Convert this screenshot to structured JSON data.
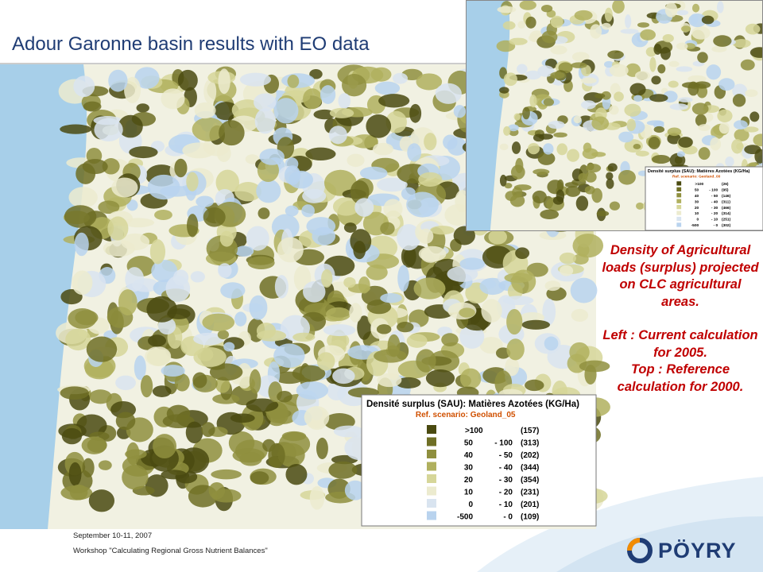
{
  "header": {
    "title": "Adour Garonne basin results with EO data"
  },
  "main_map": {
    "legend": {
      "title": "Densité surplus (SAU): Matières Azotées (KG/Ha)",
      "scenario": "Ref. scenario: Geoland_05",
      "rows": [
        {
          "from": ">100",
          "count": "(157)"
        },
        {
          "from": "50",
          "to": "- 100",
          "count": "(313)"
        },
        {
          "from": "40",
          "to": "- 50",
          "count": "(202)"
        },
        {
          "from": "30",
          "to": "- 40",
          "count": "(344)"
        },
        {
          "from": "20",
          "to": "- 30",
          "count": "(354)"
        },
        {
          "from": "10",
          "to": "- 20",
          "count": "(231)"
        },
        {
          "from": "0",
          "to": "- 10",
          "count": "(201)"
        },
        {
          "from": "-500",
          "to": "- 0",
          "count": "(109)"
        }
      ]
    }
  },
  "inset_map": {
    "legend": {
      "title": "Densité surplus (SAU): Matières Azotées (KG/Ha)",
      "scenario": "Ref. scenario: Geoland_00",
      "rows": [
        {
          "from": ">100",
          "count": "(26)"
        },
        {
          "from": "50",
          "to": "- 100",
          "count": "(95)"
        },
        {
          "from": "40",
          "to": "- 50",
          "count": "(146)"
        },
        {
          "from": "30",
          "to": "- 40",
          "count": "(311)"
        },
        {
          "from": "20",
          "to": "- 30",
          "count": "(466)"
        },
        {
          "from": "10",
          "to": "- 20",
          "count": "(314)"
        },
        {
          "from": "0",
          "to": "- 10",
          "count": "(251)"
        },
        {
          "from": "-500",
          "to": "- 0",
          "count": "(302)"
        }
      ]
    }
  },
  "description": {
    "lines": [
      "Density of Agricultural loads (surplus) projected on CLC agricultural areas.",
      "Left : Current calculation for 2005.",
      "Top : Reference calculation for 2000."
    ]
  },
  "footer": {
    "date": "September 10-11, 2007",
    "event": "Workshop \"Calculating Regional Gross Nutrient Balances\""
  },
  "logo": {
    "text": "PÖYRY"
  }
}
